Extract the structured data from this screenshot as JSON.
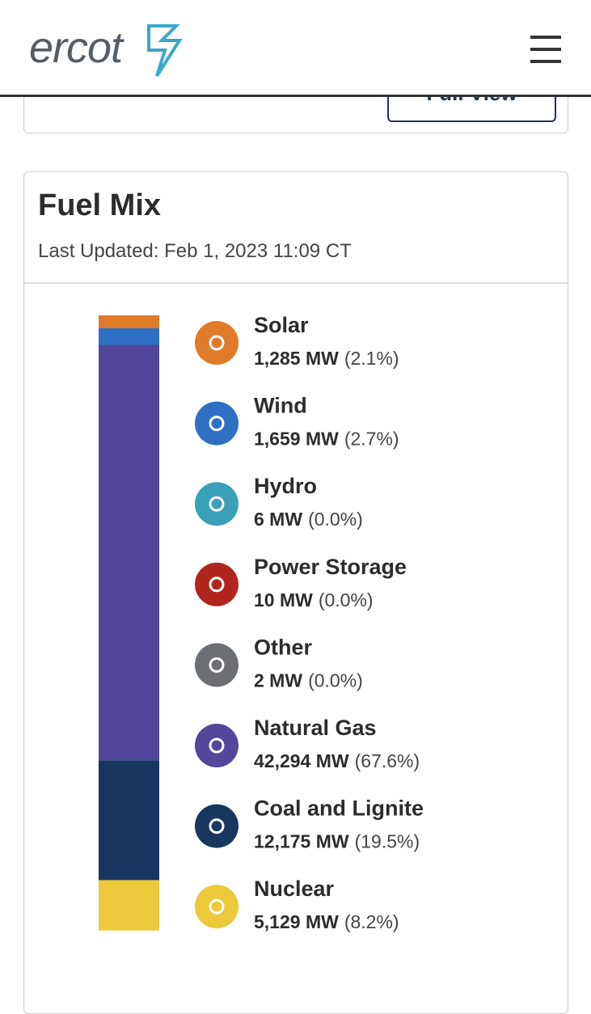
{
  "header": {
    "logo": "ercot"
  },
  "prev_card": {
    "button": "Full View"
  },
  "fuel_mix": {
    "title": "Fuel Mix",
    "updated": "Last Updated: Feb 1, 2023 11:09 CT",
    "fuels": [
      {
        "name": "Solar",
        "color": "#e07b2a",
        "mw": 1285,
        "mw_label": "1,285 MW",
        "percent": 2.1,
        "percent_label": "(2.1%)"
      },
      {
        "name": "Wind",
        "color": "#2f70c4",
        "mw": 1659,
        "mw_label": "1,659 MW",
        "percent": 2.7,
        "percent_label": "(2.7%)"
      },
      {
        "name": "Hydro",
        "color": "#3aa0b8",
        "mw": 6,
        "mw_label": "6 MW",
        "percent": 0.0,
        "percent_label": "(0.0%)"
      },
      {
        "name": "Power Storage",
        "color": "#b0261e",
        "mw": 10,
        "mw_label": "10 MW",
        "percent": 0.0,
        "percent_label": "(0.0%)"
      },
      {
        "name": "Other",
        "color": "#6b6e73",
        "mw": 2,
        "mw_label": "2 MW",
        "percent": 0.0,
        "percent_label": "(0.0%)"
      },
      {
        "name": "Natural Gas",
        "color": "#52479b",
        "mw": 42294,
        "mw_label": "42,294 MW",
        "percent": 67.6,
        "percent_label": "(67.6%)"
      },
      {
        "name": "Coal and Lignite",
        "color": "#17375f",
        "mw": 12175,
        "mw_label": "12,175 MW",
        "percent": 19.5,
        "percent_label": "(19.5%)"
      },
      {
        "name": "Nuclear",
        "color": "#ecc93a",
        "mw": 5129,
        "mw_label": "5,129 MW",
        "percent": 8.2,
        "percent_label": "(8.2%)"
      }
    ]
  }
}
